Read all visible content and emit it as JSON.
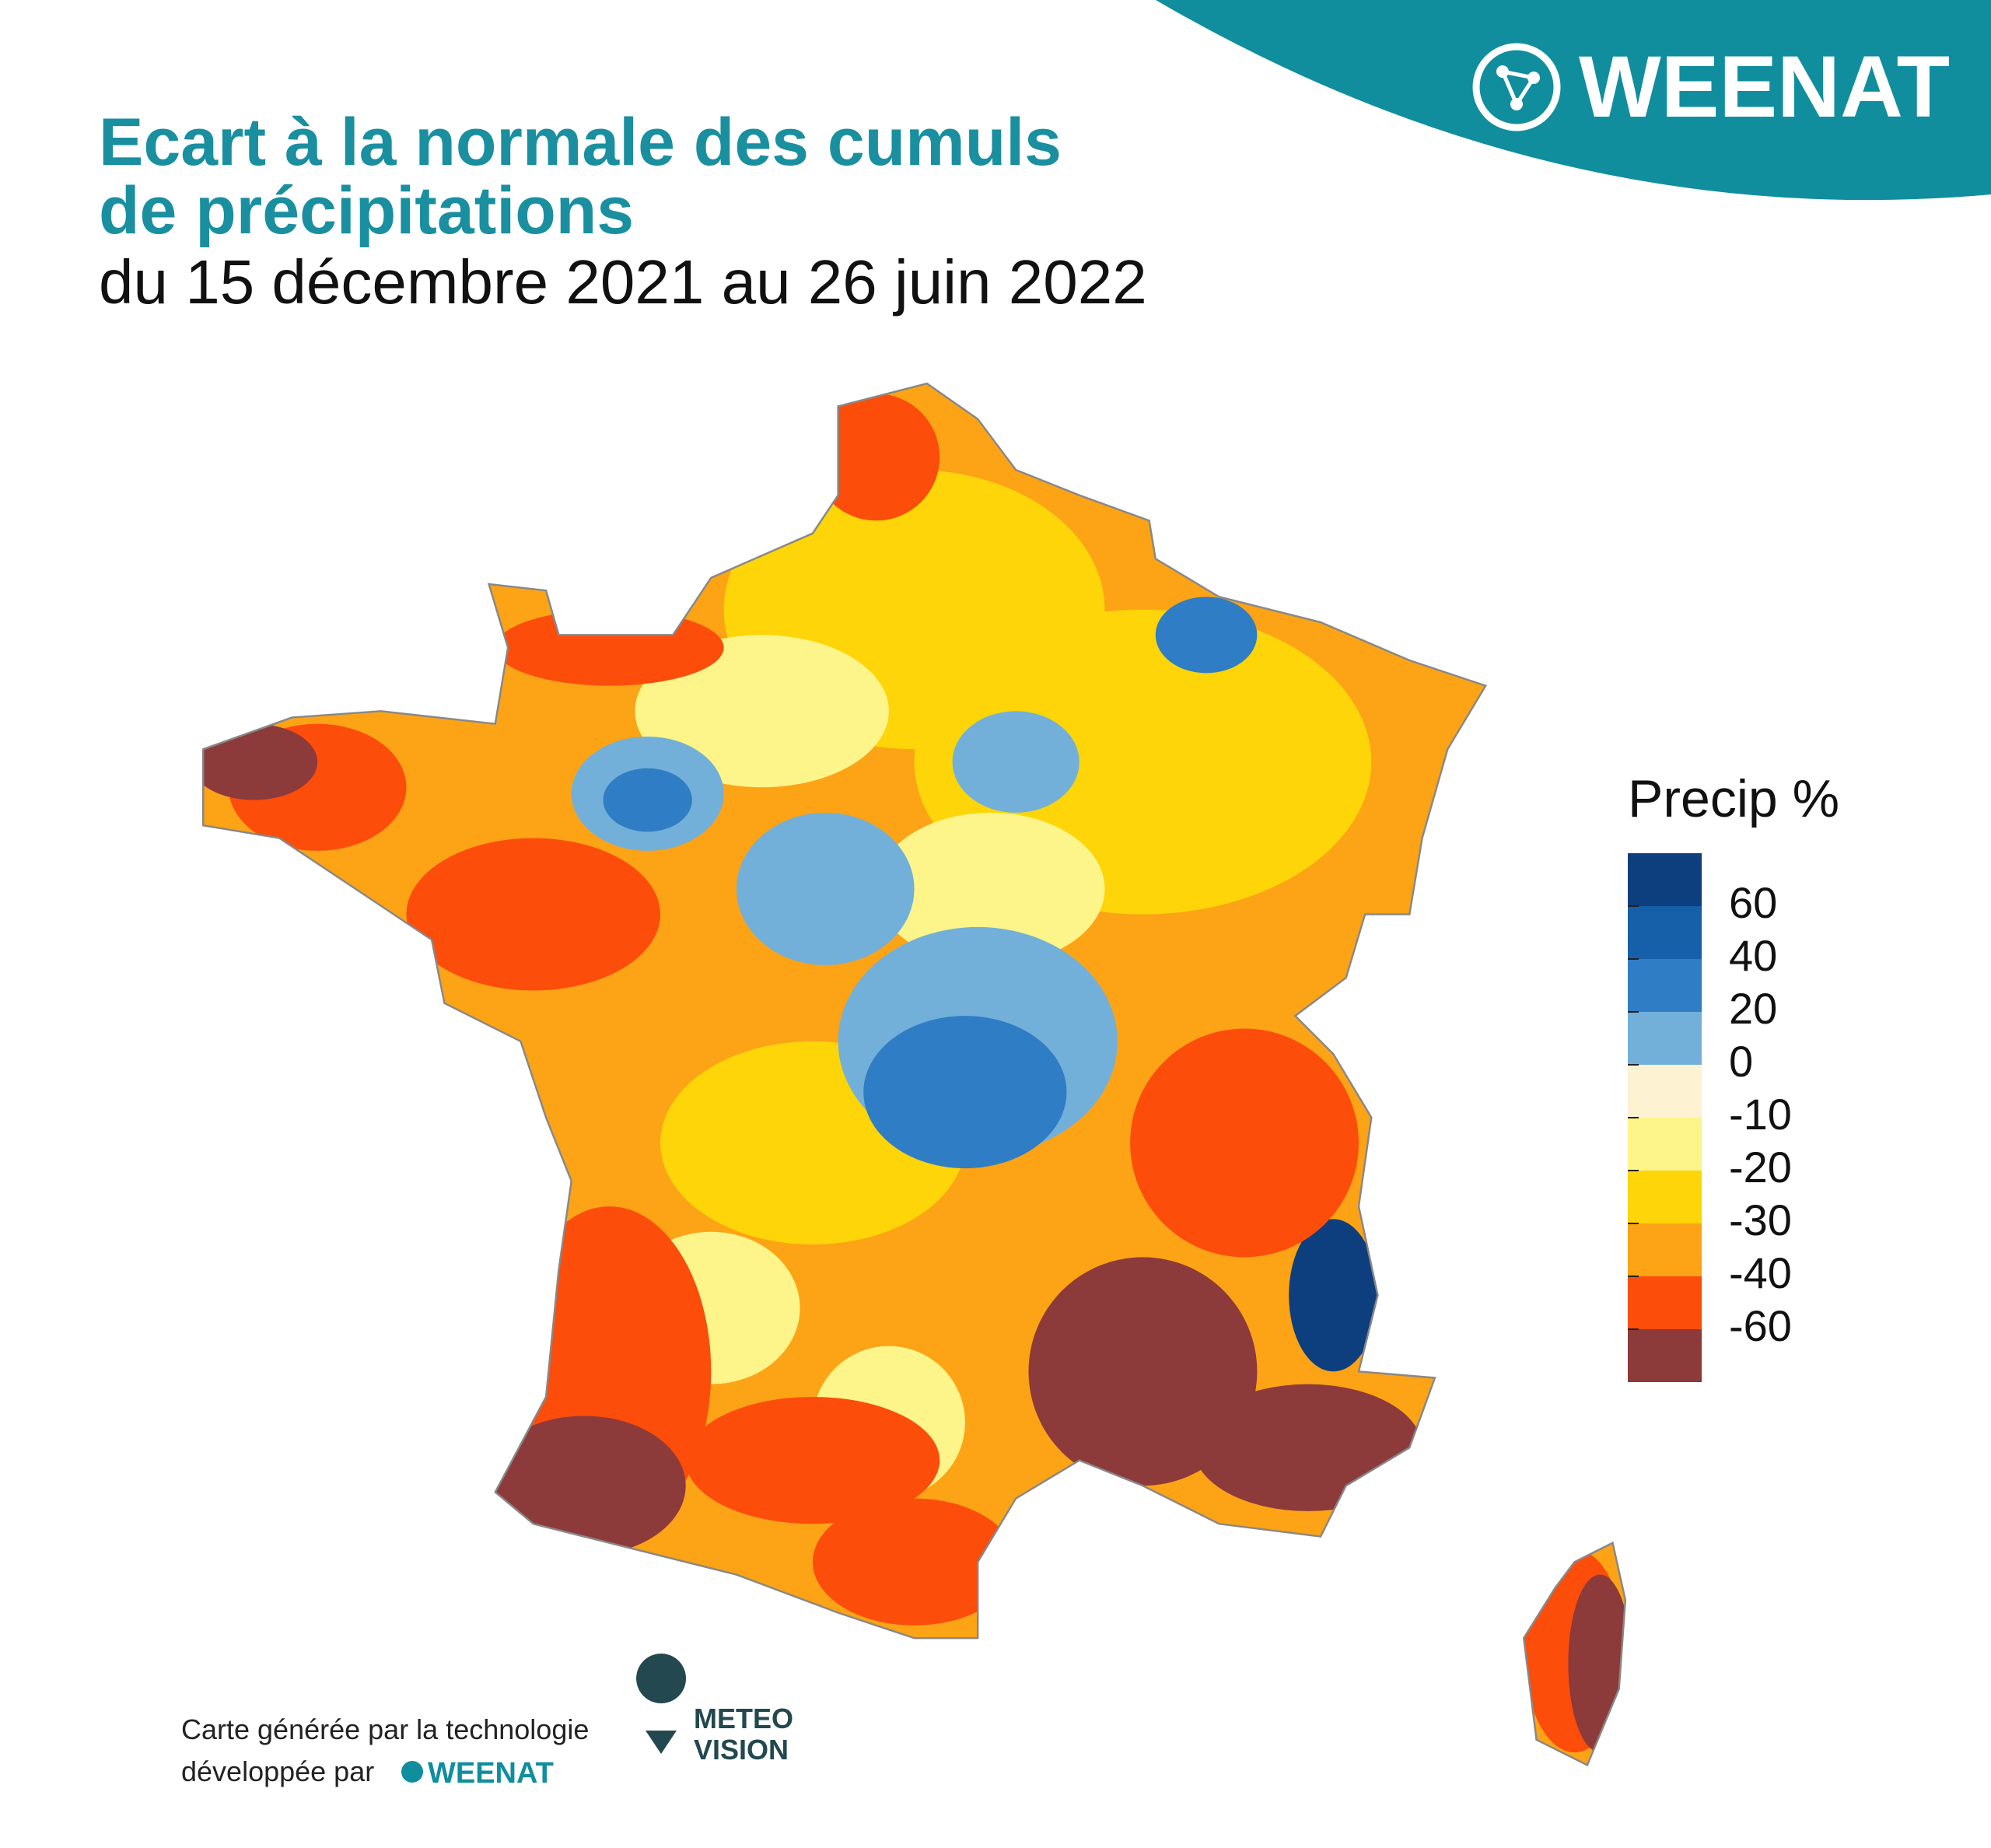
{
  "header": {
    "title_lines": [
      "Ecart à la normale des cumuls",
      "de précipitations"
    ],
    "subtitle": "du 15 décembre 2021 au 26 juin 2022",
    "brand": "WEENAT"
  },
  "legend": {
    "title": "Precip %",
    "colors": [
      "#0d3f7e",
      "#1660aa",
      "#2f7dc4",
      "#72b0d9",
      "#fdf3d2",
      "#fdf58a",
      "#fdd508",
      "#fda316",
      "#fc4d0b",
      "#8c3a3a"
    ],
    "ticks": [
      60,
      40,
      20,
      0,
      -10,
      -20,
      -30,
      -40,
      -60
    ]
  },
  "footer": {
    "line1": "Carte générée par la technologie",
    "line2": "développée par",
    "brand": "WEENAT",
    "partner_top": "METEO",
    "partner_bottom": "VISION"
  }
}
